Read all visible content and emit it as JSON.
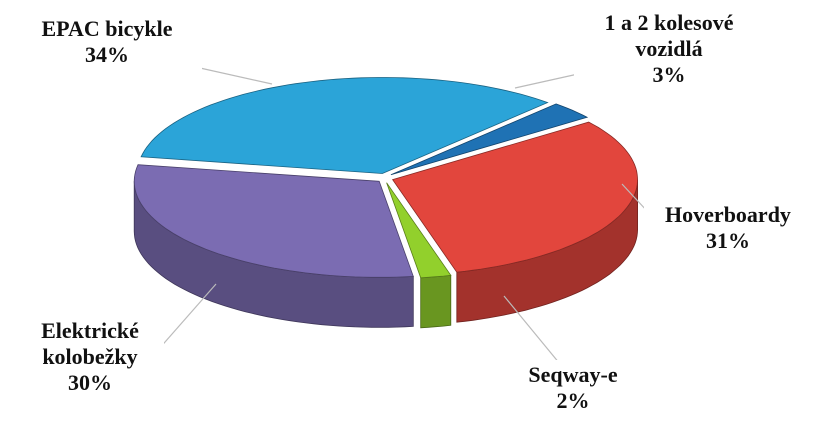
{
  "chart_data": {
    "type": "pie",
    "categories": [
      "EPAC bicykle",
      "1 a 2 kolesové vozidlá",
      "Hoverboardy",
      "Seqway-e",
      "Elektrické kolobežky"
    ],
    "values": [
      34,
      3,
      31,
      2,
      30
    ],
    "value_labels": [
      "34%",
      "3%",
      "31%",
      "2%",
      "30%"
    ],
    "colors": [
      "#2ba4d8",
      "#1f72b4",
      "#e2463d",
      "#92d02c",
      "#7b6cb2"
    ]
  }
}
